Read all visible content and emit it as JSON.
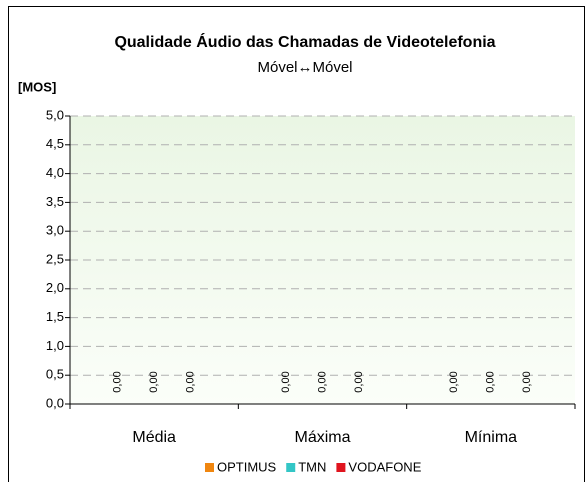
{
  "chart_data": {
    "type": "bar",
    "title": "Qualidade Áudio das Chamadas de Videotelefonia",
    "subtitle": "Móvel↔Móvel",
    "y_label": "[MOS]",
    "categories": [
      "Média",
      "Máxima",
      "Mínima"
    ],
    "series": [
      {
        "name": "OPTIMUS",
        "color": "#f0860f",
        "values": [
          0,
          0,
          0
        ],
        "value_labels": [
          "0,00",
          "0,00",
          "0,00"
        ]
      },
      {
        "name": "TMN",
        "color": "#33c6c6",
        "values": [
          0,
          0,
          0
        ],
        "value_labels": [
          "0,00",
          "0,00",
          "0,00"
        ]
      },
      {
        "name": "VODAFONE",
        "color": "#e0141e",
        "values": [
          0,
          0,
          0
        ],
        "value_labels": [
          "0,00",
          "0,00",
          "0,00"
        ]
      }
    ],
    "ylim": [
      0,
      5
    ],
    "yticks": [
      {
        "value": 0,
        "label": "0,0"
      },
      {
        "value": 0.5,
        "label": "0,5"
      },
      {
        "value": 1,
        "label": "1,0"
      },
      {
        "value": 1.5,
        "label": "1,5"
      },
      {
        "value": 2,
        "label": "2,0"
      },
      {
        "value": 2.5,
        "label": "2,5"
      },
      {
        "value": 3,
        "label": "3,0"
      },
      {
        "value": 3.5,
        "label": "3,5"
      },
      {
        "value": 4,
        "label": "4,0"
      },
      {
        "value": 4.5,
        "label": "4,5"
      },
      {
        "value": 5,
        "label": "5,0"
      }
    ],
    "grid": true,
    "legend": "bottom"
  }
}
